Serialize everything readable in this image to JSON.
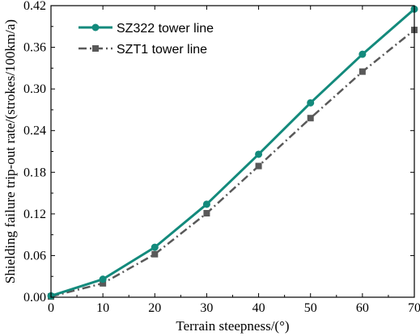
{
  "chart_data": {
    "type": "line",
    "title": "",
    "xlabel": "Terrain steepness/(°)",
    "ylabel": "Shielding failure trip-out rate/(strokes/100km/a)",
    "xlim": [
      0,
      70
    ],
    "ylim": [
      0,
      0.42
    ],
    "xticks": [
      0,
      10,
      20,
      30,
      40,
      50,
      60,
      70
    ],
    "xtick_labels": [
      "0",
      "10",
      "20",
      "30",
      "40",
      "50",
      "60",
      "70"
    ],
    "yticks": [
      0,
      0.06,
      0.12,
      0.18,
      0.24,
      0.3,
      0.36,
      0.42
    ],
    "ytick_labels": [
      "0.00",
      "0.06",
      "0.12",
      "0.18",
      "0.24",
      "0.30",
      "0.36",
      "0.42"
    ],
    "grid": false,
    "legend_position": "top-left",
    "x": [
      0,
      10,
      20,
      30,
      40,
      50,
      60,
      70
    ],
    "series": [
      {
        "name": "SZ322 tower line",
        "values": [
          0.002,
          0.026,
          0.072,
          0.134,
          0.206,
          0.28,
          0.35,
          0.415
        ],
        "color": "#138a7c",
        "marker": "circle",
        "line_style": "solid"
      },
      {
        "name": "SZT1 tower line",
        "values": [
          0.001,
          0.02,
          0.062,
          0.121,
          0.189,
          0.258,
          0.325,
          0.385
        ],
        "color": "#595959",
        "marker": "square",
        "line_style": "dash-dot"
      }
    ]
  }
}
